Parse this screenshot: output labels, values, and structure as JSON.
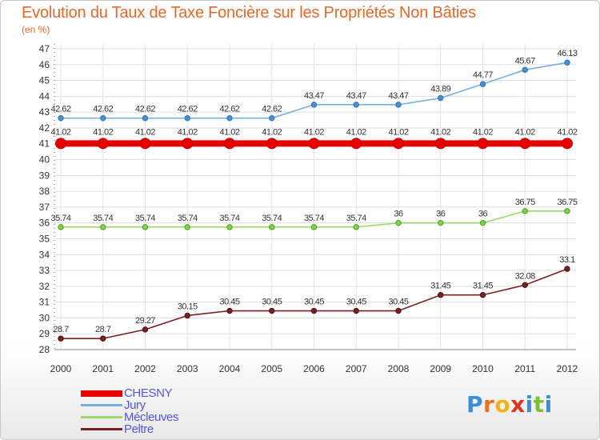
{
  "header": {
    "title": "Evolution du Taux de Taxe Foncière sur les Propriétés Non Bâties",
    "unit": "(en %)"
  },
  "logo": {
    "text": "Proxiti"
  },
  "chart_data": {
    "type": "line",
    "title": "Evolution du Taux de Taxe Foncière sur les Propriétés Non Bâties",
    "ylabel": "(en %)",
    "xlabel": "",
    "x": [
      "2000",
      "2001",
      "2002",
      "2003",
      "2004",
      "2005",
      "2006",
      "2007",
      "2008",
      "2009",
      "2010",
      "2011",
      "2012"
    ],
    "ylim": [
      28,
      47
    ],
    "yticks": [
      28,
      29,
      30,
      31,
      32,
      33,
      34,
      35,
      36,
      37,
      38,
      39,
      40,
      41,
      42,
      43,
      44,
      45,
      46,
      47
    ],
    "grid": true,
    "legend_position": "bottom-left",
    "series": [
      {
        "name": "CHESNY",
        "color": "#e80000",
        "values": [
          41.02,
          41.02,
          41.02,
          41.02,
          41.02,
          41.02,
          41.02,
          41.02,
          41.02,
          41.02,
          41.02,
          41.02,
          41.02
        ],
        "labels": [
          "41.02",
          "41.02",
          "41.02",
          "41.02",
          "41.02",
          "41.02",
          "41.02",
          "41.02",
          "41.02",
          "41.02",
          "41.02",
          "41.02",
          "41.02"
        ]
      },
      {
        "name": "Jury",
        "color": "#7aaedd",
        "values": [
          42.62,
          42.62,
          42.62,
          42.62,
          42.62,
          42.62,
          43.47,
          43.47,
          43.47,
          43.89,
          44.77,
          45.67,
          46.13
        ],
        "labels": [
          "42.62",
          "42.62",
          "42.62",
          "42.62",
          "42.62",
          "42.62",
          "43.47",
          "43.47",
          "43.47",
          "43.89",
          "44.77",
          "45.67",
          "46.13"
        ]
      },
      {
        "name": "Mécleuves",
        "color": "#9ad96a",
        "values": [
          35.74,
          35.74,
          35.74,
          35.74,
          35.74,
          35.74,
          35.74,
          35.74,
          36,
          36,
          36,
          36.75,
          36.75
        ],
        "labels": [
          "35.74",
          "35.74",
          "35.74",
          "35.74",
          "35.74",
          "35.74",
          "35.74",
          "35.74",
          "36",
          "36",
          "36",
          "36.75",
          "36.75"
        ]
      },
      {
        "name": "Peltre",
        "color": "#7a2020",
        "values": [
          28.7,
          28.7,
          29.27,
          30.15,
          30.45,
          30.45,
          30.45,
          30.45,
          30.45,
          31.45,
          31.45,
          32.08,
          33.1
        ],
        "labels": [
          "28.7",
          "28.7",
          "29.27",
          "30.15",
          "30.45",
          "30.45",
          "30.45",
          "30.45",
          "30.45",
          "31.45",
          "31.45",
          "32.08",
          "33.1"
        ]
      }
    ]
  }
}
